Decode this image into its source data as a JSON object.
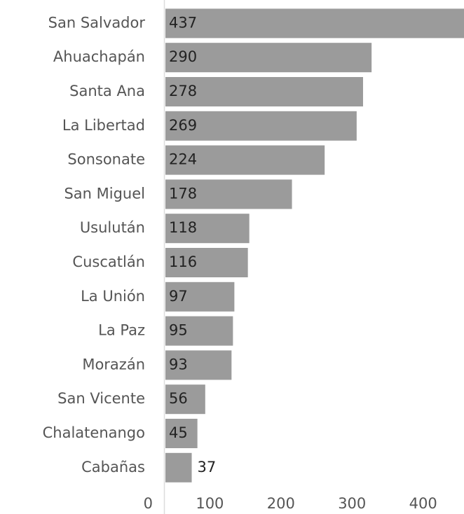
{
  "chart_data": {
    "type": "bar",
    "orientation": "horizontal",
    "categories": [
      "San Salvador",
      "Ahuachapán",
      "Santa Ana",
      "La Libertad",
      "Sonsonate",
      "San Miguel",
      "Usulután",
      "Cuscatlán",
      "La Unión",
      "La Paz",
      "Morazán",
      "San Vicente",
      "Chalatenango",
      "Cabañas"
    ],
    "values": [
      437,
      290,
      278,
      269,
      224,
      178,
      118,
      116,
      97,
      95,
      93,
      56,
      45,
      37
    ],
    "color": "#9b9b9b",
    "xlim": [
      0,
      420
    ],
    "xticks": [
      0,
      100,
      200,
      300,
      400
    ],
    "grid": false
  }
}
